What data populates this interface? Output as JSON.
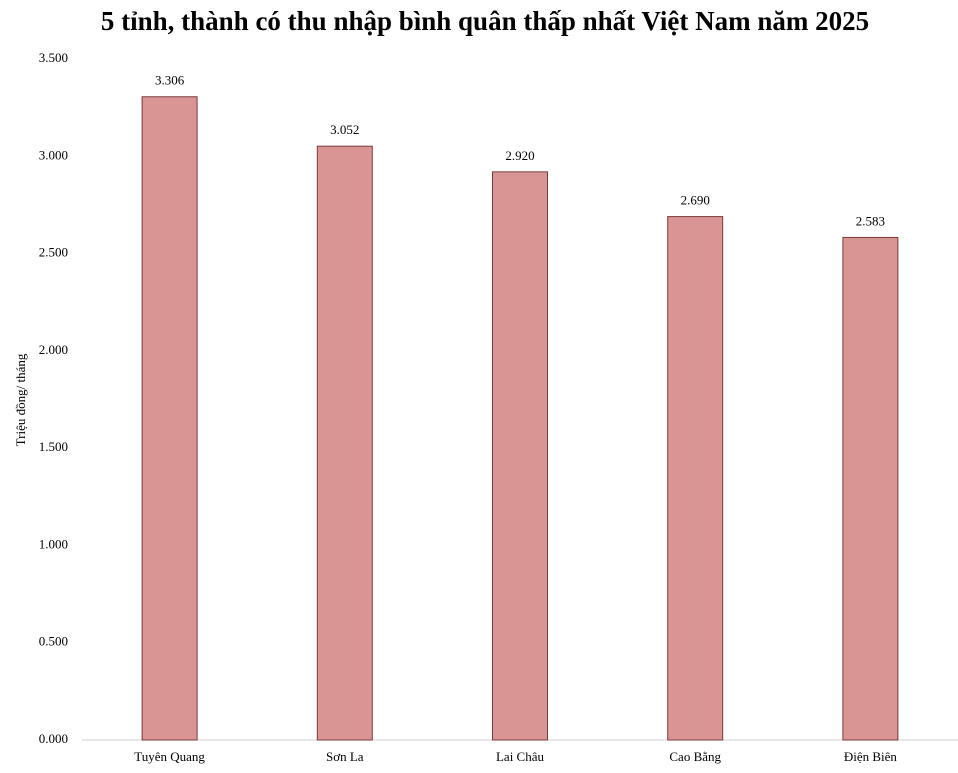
{
  "chart_data": {
    "type": "bar",
    "title": "5 tỉnh, thành có thu nhập bình quân thấp nhất Việt Nam năm 2025",
    "y_label": "Triệu đồng/ tháng",
    "categories": [
      "Tuyên Quang",
      "Sơn La",
      "Lai Châu",
      "Cao Bằng",
      "Điện Biên"
    ],
    "values": [
      3.306,
      3.052,
      2.92,
      2.69,
      2.583
    ],
    "value_labels": [
      "3.306",
      "3.052",
      "2.920",
      "2.690",
      "2.583"
    ],
    "color": "#d99594",
    "ylim": [
      0,
      3.5
    ],
    "yticks": [
      {
        "value": 0,
        "label": "0.000"
      },
      {
        "value": 0.5,
        "label": "0.500"
      },
      {
        "value": 1,
        "label": "1.000"
      },
      {
        "value": 1.5,
        "label": "1.500"
      },
      {
        "value": 2,
        "label": "2.000"
      },
      {
        "value": 2.5,
        "label": "2.500"
      },
      {
        "value": 3,
        "label": "3.000"
      },
      {
        "value": 3.5,
        "label": "3.500"
      }
    ],
    "grid": false
  }
}
